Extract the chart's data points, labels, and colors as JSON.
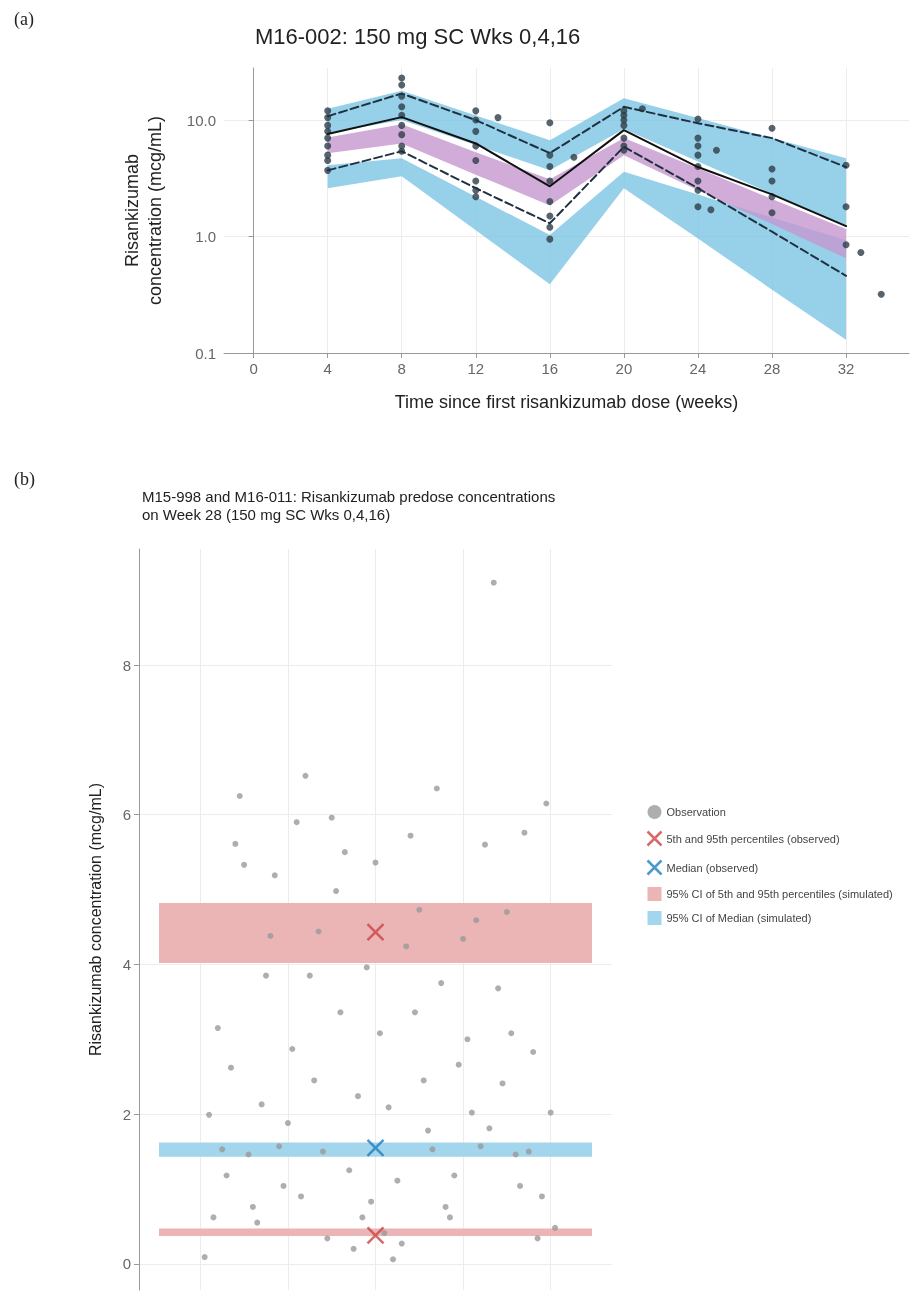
{
  "chart_data": [
    {
      "type": "line",
      "title": "M16-002: 150 mg SC Wks 0,4,16",
      "xlabel": "Time since first risankizumab dose (weeks)",
      "ylabel": "Risankizumab\nconcentration (mcg/mL)",
      "annotations": [
        "(a)"
      ],
      "log": "y",
      "grid": true,
      "legend": false,
      "xlim": [
        -1.6,
        35.4
      ],
      "xticks": [
        0,
        4,
        8,
        12,
        16,
        20,
        24,
        28,
        32
      ],
      "ylim": [
        0.1,
        28
      ],
      "yticks": [
        {
          "value": 0.1,
          "label": "0.1"
        },
        {
          "value": 1,
          "label": "1.0"
        },
        {
          "value": 10,
          "label": "10.0"
        }
      ],
      "series": [
        {
          "color": "#1f3140",
          "line_style": "dashed",
          "marker": "none",
          "x": [
            4,
            8,
            12,
            16,
            20,
            24,
            28,
            32
          ],
          "values": [
            3.7,
            5.4,
            2.6,
            1.3,
            5.9,
            2.6,
            1.1,
            0.46
          ],
          "lower": [
            2.6,
            3.3,
            1.13,
            0.39,
            2.6,
            0.96,
            0.35,
            0.13
          ],
          "upper": [
            4.1,
            4.7,
            2.2,
            1.03,
            3.6,
            2.3,
            1.46,
            0.93
          ]
        },
        {
          "color": "#111111",
          "line_style": "solid",
          "marker": "none",
          "x": [
            4,
            8,
            12,
            16,
            20,
            24,
            28,
            32
          ],
          "values": [
            7.6,
            10.6,
            6.3,
            2.7,
            8.2,
            3.95,
            2.3,
            1.23
          ],
          "lower": [
            5.2,
            6.3,
            3.4,
            1.85,
            5.0,
            2.5,
            1.28,
            0.65
          ],
          "upper": [
            7.1,
            9.2,
            5.3,
            3.1,
            7.0,
            3.85,
            2.1,
            1.16
          ]
        },
        {
          "color": "#1f3140",
          "line_style": "dashed",
          "marker": "none",
          "x": [
            4,
            8,
            12,
            16,
            20,
            24,
            28,
            32
          ],
          "values": [
            10.8,
            16.9,
            10,
            5.2,
            13,
            9.4,
            7.0,
            3.95
          ],
          "lower": [
            7.7,
            10,
            6.1,
            3.7,
            8.4,
            4.4,
            2.33,
            1.23
          ],
          "upper": [
            12.5,
            17.9,
            10.95,
            6.7,
            15.4,
            10.4,
            7.0,
            4.7
          ]
        },
        {
          "type": "scatter",
          "color": "#2e3d48",
          "marker": "circle",
          "x": [
            4,
            4,
            4,
            4,
            4,
            4,
            4,
            4,
            4,
            8,
            8,
            8,
            8,
            8,
            8,
            8,
            8,
            8,
            12,
            12,
            12,
            12,
            12,
            12,
            12,
            12,
            13.2,
            16,
            16,
            16,
            16,
            16,
            16,
            16,
            16,
            17.3,
            20,
            20,
            20,
            20,
            20,
            20,
            20,
            21,
            24,
            24,
            24,
            24,
            24,
            24,
            24,
            24,
            25,
            24.7,
            28,
            28,
            28,
            28,
            28,
            32,
            32,
            32,
            32.8,
            33.9
          ],
          "values": [
            12,
            10.5,
            9,
            8,
            7,
            6,
            5,
            4.5,
            3.7,
            23,
            20,
            16,
            13,
            11,
            9,
            7.5,
            6,
            5.4,
            12,
            10,
            8,
            6,
            4.5,
            3,
            2.5,
            2.2,
            10.5,
            9.5,
            5,
            4,
            3,
            2,
            1.5,
            1.2,
            0.95,
            4.8,
            12,
            11,
            10,
            9,
            7,
            6,
            5.5,
            12.5,
            10.2,
            7,
            6,
            5,
            4,
            3,
            2.5,
            1.8,
            5.5,
            1.7,
            8.5,
            3.8,
            3,
            2.2,
            1.6,
            4.1,
            1.8,
            0.85,
            0.73,
            0.32
          ]
        }
      ]
    },
    {
      "type": "scatter",
      "title": "M15-998 and M16-011: Risankizumab predose concentrations\non Week 28 (150 mg SC Wks 0,4,16)",
      "ylabel": "Risankizumab concentration (mcg/mL)",
      "annotations": [
        "(b)"
      ],
      "grid": true,
      "legend": "right",
      "tick_labels": "y",
      "categories": [
        null,
        null,
        null,
        null,
        null,
        null,
        null,
        null,
        null,
        null,
        null,
        null,
        null,
        null,
        null,
        null,
        null,
        null,
        null,
        null,
        null,
        null,
        null,
        null,
        null,
        null,
        null,
        null,
        null,
        null,
        null,
        null,
        null,
        null,
        null,
        null,
        null,
        null,
        null,
        null,
        null,
        null,
        null,
        null,
        null,
        null,
        null,
        null,
        null,
        null,
        null,
        null,
        null,
        null,
        null,
        null,
        null,
        null,
        null,
        null,
        null,
        null,
        null,
        null,
        null,
        null,
        null,
        null,
        null,
        null,
        null,
        null,
        null,
        null,
        null,
        null,
        null,
        null,
        null,
        null,
        null,
        null,
        null,
        null,
        null,
        null,
        null,
        null,
        null,
        null,
        null,
        null,
        null,
        null,
        null,
        null,
        null,
        null,
        null,
        null,
        null,
        null,
        null,
        null,
        null,
        null,
        null,
        null,
        null
      ],
      "ylim": [
        -0.35,
        9.55
      ],
      "yticks": [
        0,
        2,
        4,
        6,
        8
      ],
      "bands": [
        {
          "axis": "y",
          "from": 4.02,
          "to": 4.82,
          "label": "95% CI of 5th and 95th percentiles (simulated)",
          "color": "#ebb5b5"
        },
        {
          "axis": "y",
          "from": 1.43,
          "to": 1.62,
          "label": "95% CI of Median (simulated)",
          "color": "#a3d5ec"
        },
        {
          "axis": "y",
          "from": 0.37,
          "to": 0.47,
          "color": "#ebb5b5"
        }
      ],
      "series": [
        {
          "name": "Observation",
          "color": "#9a9a9a",
          "marker": "circle",
          "values": [
            null,
            null,
            null,
            null,
            null,
            null,
            null,
            null,
            null,
            null,
            null,
            null,
            null,
            null,
            null,
            0.09,
            1.99,
            0.62,
            3.15,
            1.53,
            1.18,
            2.62,
            5.61,
            6.25,
            5.33,
            1.46,
            0.76,
            0.55,
            2.13,
            3.85,
            4.38,
            5.19,
            1.57,
            1.04,
            1.88,
            2.87,
            5.9,
            0.9,
            6.52,
            3.85,
            2.45,
            4.44,
            1.5,
            0.34,
            5.96,
            4.98,
            3.36,
            5.5,
            1.25,
            0.2,
            2.24,
            0.62,
            3.96,
            0.83,
            5.36,
            3.08,
            0.41,
            2.09,
            0.06,
            1.11,
            0.27,
            4.24,
            5.72,
            3.36,
            4.73,
            2.45,
            1.78,
            1.53,
            6.35,
            3.75,
            0.76,
            0.62,
            1.18,
            2.66,
            4.34,
            3.0,
            2.02,
            4.59,
            1.57,
            5.6,
            1.81,
            9.1,
            3.68,
            2.41,
            4.7,
            3.08,
            1.46,
            1.04,
            5.76,
            1.5,
            2.83,
            0.34,
            0.9,
            6.15,
            2.02,
            0.48,
            null,
            null,
            null,
            null,
            null,
            null,
            null,
            null,
            null,
            null,
            null,
            null,
            null
          ]
        },
        {
          "name": "5th and 95th percentiles (observed)",
          "color": "#cc4444",
          "marker": "cross",
          "values": [
            null,
            null,
            null,
            null,
            null,
            null,
            null,
            null,
            null,
            null,
            null,
            null,
            null,
            null,
            null,
            null,
            null,
            null,
            null,
            null,
            null,
            null,
            null,
            null,
            null,
            null,
            null,
            null,
            null,
            null,
            null,
            null,
            null,
            null,
            null,
            null,
            null,
            null,
            null,
            null,
            null,
            null,
            null,
            null,
            null,
            null,
            null,
            null,
            null,
            null,
            null,
            null,
            null,
            null,
            4.43,
            null,
            null,
            null,
            null,
            null,
            null,
            null,
            null,
            null,
            null,
            null,
            null,
            null,
            null,
            null,
            null,
            null,
            null,
            null,
            null,
            null,
            null,
            null,
            null,
            null,
            null,
            null,
            null,
            null,
            null,
            null,
            null,
            null,
            null,
            null,
            null,
            null,
            null,
            null,
            null,
            null,
            null,
            null,
            null,
            null,
            null,
            null,
            null,
            null,
            null,
            null,
            null,
            null,
            null
          ]
        },
        {
          "color": "#cc4444",
          "marker": "cross",
          "values": [
            null,
            null,
            null,
            null,
            null,
            null,
            null,
            null,
            null,
            null,
            null,
            null,
            null,
            null,
            null,
            null,
            null,
            null,
            null,
            null,
            null,
            null,
            null,
            null,
            null,
            null,
            null,
            null,
            null,
            null,
            null,
            null,
            null,
            null,
            null,
            null,
            null,
            null,
            null,
            null,
            null,
            null,
            null,
            null,
            null,
            null,
            null,
            null,
            null,
            null,
            null,
            null,
            null,
            null,
            0.38,
            null,
            null,
            null,
            null,
            null,
            null,
            null,
            null,
            null,
            null,
            null,
            null,
            null,
            null,
            null,
            null,
            null,
            null,
            null,
            null,
            null,
            null,
            null,
            null,
            null,
            null,
            null,
            null,
            null,
            null,
            null,
            null,
            null,
            null,
            null,
            null,
            null,
            null,
            null,
            null,
            null,
            null,
            null,
            null,
            null,
            null,
            null,
            null,
            null,
            null,
            null,
            null,
            null,
            null
          ]
        },
        {
          "name": "Median (observed)",
          "color": "#1f7fbf",
          "marker": "cross",
          "values": [
            null,
            null,
            null,
            null,
            null,
            null,
            null,
            null,
            null,
            null,
            null,
            null,
            null,
            null,
            null,
            null,
            null,
            null,
            null,
            null,
            null,
            null,
            null,
            null,
            null,
            null,
            null,
            null,
            null,
            null,
            null,
            null,
            null,
            null,
            null,
            null,
            null,
            null,
            null,
            null,
            null,
            null,
            null,
            null,
            null,
            null,
            null,
            null,
            null,
            null,
            null,
            null,
            null,
            null,
            1.55,
            null,
            null,
            null,
            null,
            null,
            null,
            null,
            null,
            null,
            null,
            null,
            null,
            null,
            null,
            null,
            null,
            null,
            null,
            null,
            null,
            null,
            null,
            null,
            null,
            null,
            null,
            null,
            null,
            null,
            null,
            null,
            null,
            null,
            null,
            null,
            null,
            null,
            null,
            null,
            null,
            null,
            null,
            null,
            null,
            null,
            null,
            null,
            null,
            null,
            null,
            null,
            null,
            null,
            null
          ]
        }
      ]
    }
  ]
}
